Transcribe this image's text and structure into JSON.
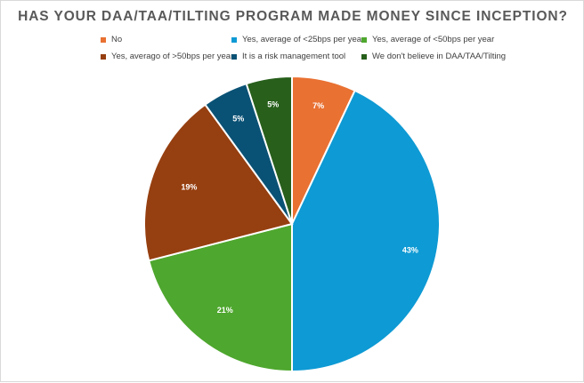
{
  "chart_data": {
    "type": "pie",
    "title": "HAS YOUR DAA/TAA/TILTING PROGRAM MADE MONEY SINCE INCEPTION?",
    "legend_position": "top",
    "categories": [
      "No",
      "Yes, average of <25bps per year",
      "Yes, average of <50bps per year",
      "Yes, averago of >50bps per year",
      "It is a risk management tool",
      "We don't believe in DAA/TAA/Tilting"
    ],
    "values": [
      7,
      43,
      21,
      19,
      5,
      5
    ],
    "data_labels": [
      "7%",
      "43%",
      "21%",
      "19%",
      "5%",
      "5%"
    ],
    "colors": [
      "#E97132",
      "#0E9AD4",
      "#4EA72E",
      "#963F10",
      "#0A5275",
      "#275F1B"
    ]
  }
}
